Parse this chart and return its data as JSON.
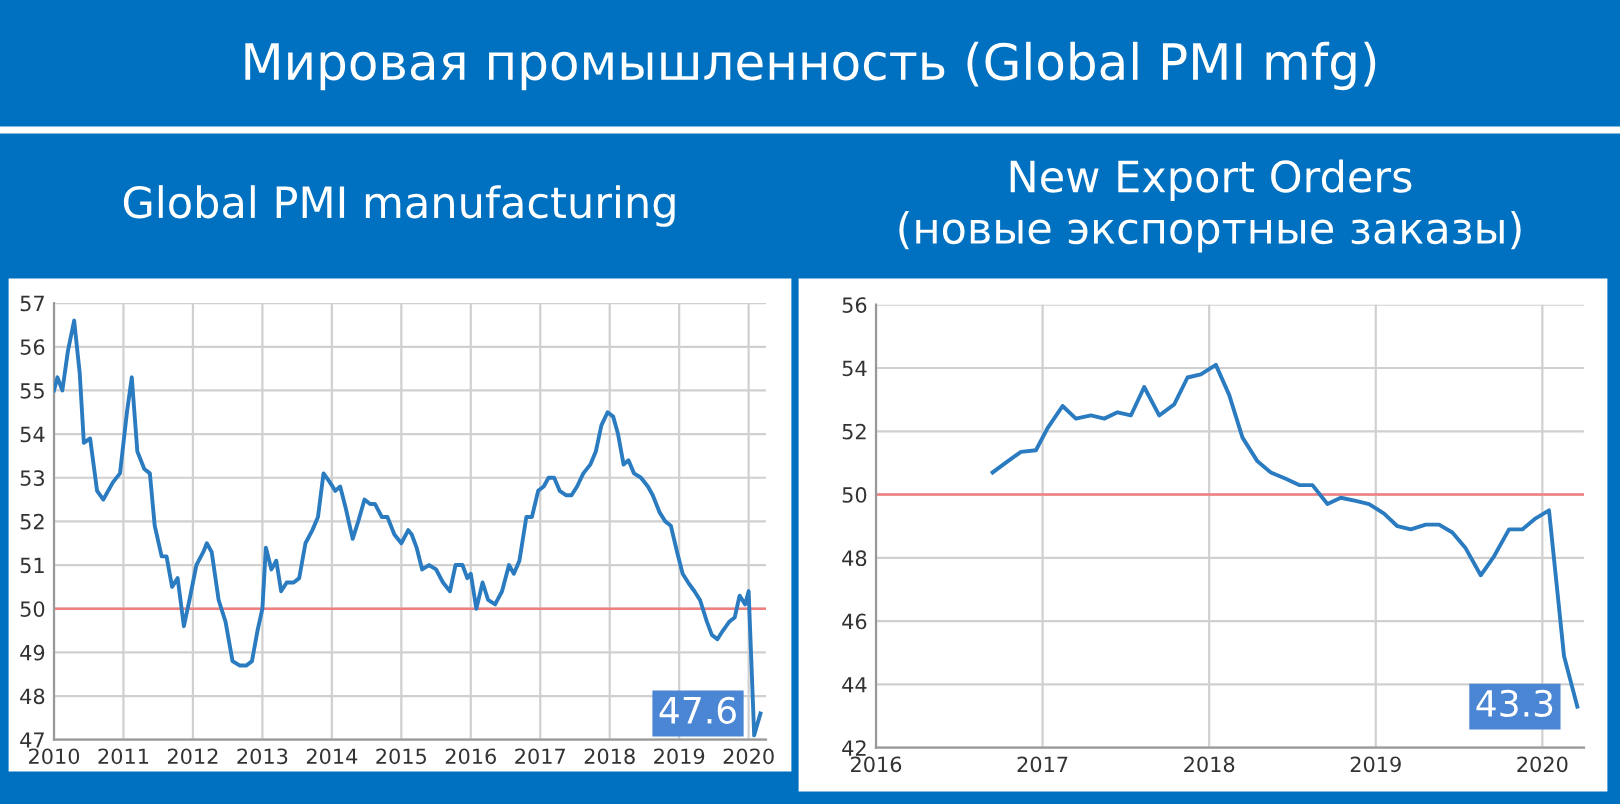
{
  "chart_data": [
    {
      "type": "line",
      "title": "Global PMI manufacturing",
      "annotations": [
        "Мировая промышленность (Global PMI mfg)",
        {
          "text": "47.6",
          "x": 2020.17,
          "y": 47.6
        }
      ],
      "x": [
        2010.0,
        2010.05,
        2010.12,
        2010.2,
        2010.29,
        2010.37,
        2010.43,
        2010.52,
        2010.62,
        2010.71,
        2010.85,
        2010.95,
        2011.05,
        2011.12,
        2011.2,
        2011.3,
        2011.38,
        2011.45,
        2011.55,
        2011.62,
        2011.7,
        2011.78,
        2011.87,
        2011.95,
        2012.05,
        2012.15,
        2012.2,
        2012.27,
        2012.37,
        2012.47,
        2012.57,
        2012.67,
        2012.77,
        2012.85,
        2012.93,
        2013.0,
        2013.05,
        2013.13,
        2013.2,
        2013.27,
        2013.35,
        2013.45,
        2013.53,
        2013.62,
        2013.72,
        2013.8,
        2013.88,
        2013.97,
        2014.05,
        2014.12,
        2014.2,
        2014.3,
        2014.38,
        2014.47,
        2014.55,
        2014.62,
        2014.72,
        2014.8,
        2014.9,
        2015.0,
        2015.1,
        2015.15,
        2015.22,
        2015.3,
        2015.4,
        2015.5,
        2015.6,
        2015.7,
        2015.78,
        2015.88,
        2015.95,
        2016.0,
        2016.08,
        2016.17,
        2016.25,
        2016.35,
        2016.45,
        2016.55,
        2016.62,
        2016.7,
        2016.8,
        2016.88,
        2016.97,
        2017.05,
        2017.12,
        2017.2,
        2017.28,
        2017.37,
        2017.45,
        2017.53,
        2017.62,
        2017.72,
        2017.8,
        2017.88,
        2017.97,
        2018.05,
        2018.12,
        2018.2,
        2018.27,
        2018.35,
        2018.45,
        2018.55,
        2018.62,
        2018.72,
        2018.8,
        2018.88,
        2018.97,
        2019.05,
        2019.13,
        2019.22,
        2019.3,
        2019.4,
        2019.47,
        2019.55,
        2019.63,
        2019.72,
        2019.8,
        2019.87,
        2019.95,
        2020.0,
        2020.08,
        2020.17
      ],
      "series": [
        {
          "color": "#2a7bc0",
          "values": [
            55.0,
            55.3,
            55.0,
            55.9,
            56.6,
            55.4,
            53.8,
            53.9,
            52.7,
            52.5,
            52.9,
            53.1,
            54.5,
            55.3,
            53.6,
            53.2,
            53.1,
            51.9,
            51.2,
            51.2,
            50.5,
            50.7,
            49.6,
            50.2,
            51.0,
            51.3,
            51.5,
            51.3,
            50.2,
            49.7,
            48.8,
            48.7,
            48.7,
            48.8,
            49.5,
            50.0,
            51.4,
            50.9,
            51.1,
            50.4,
            50.6,
            50.6,
            50.7,
            51.5,
            51.8,
            52.1,
            53.1,
            52.9,
            52.7,
            52.8,
            52.3,
            51.6,
            52.0,
            52.5,
            52.4,
            52.4,
            52.1,
            52.1,
            51.7,
            51.5,
            51.8,
            51.7,
            51.4,
            50.9,
            51.0,
            50.9,
            50.6,
            50.4,
            51.0,
            51.0,
            50.7,
            50.8,
            50.0,
            50.6,
            50.2,
            50.1,
            50.4,
            51.0,
            50.8,
            51.1,
            52.1,
            52.1,
            52.7,
            52.8,
            53.0,
            53.0,
            52.7,
            52.6,
            52.6,
            52.8,
            53.1,
            53.3,
            53.6,
            54.2,
            54.5,
            54.4,
            54.0,
            53.3,
            53.4,
            53.1,
            53.0,
            52.8,
            52.6,
            52.2,
            52.0,
            51.9,
            51.3,
            50.8,
            50.6,
            50.4,
            50.2,
            49.7,
            49.4,
            49.3,
            49.5,
            49.7,
            49.8,
            50.3,
            50.1,
            50.4,
            47.1,
            47.6
          ]
        }
      ],
      "xlim": [
        2010,
        2020.25
      ],
      "xticks": [
        2010,
        2011,
        2012,
        2013,
        2014,
        2015,
        2016,
        2017,
        2018,
        2019,
        2020
      ],
      "ylim": [
        47,
        57
      ],
      "yticks": [
        47,
        48,
        49,
        50,
        51,
        52,
        53,
        54,
        55,
        56,
        57
      ],
      "ref_lines": [
        {
          "axis": "y",
          "value": 50,
          "color": "#f08080"
        }
      ],
      "grid": true
    },
    {
      "type": "line",
      "title": "New Export Orders\n(новые экспортные заказы)",
      "annotations": [
        {
          "text": "43.3",
          "x": 2020.21,
          "y": 43.3
        }
      ],
      "x": [
        2016.7,
        2016.79,
        2016.87,
        2016.96,
        2017.03,
        2017.12,
        2017.2,
        2017.29,
        2017.37,
        2017.45,
        2017.53,
        2017.61,
        2017.7,
        2017.79,
        2017.87,
        2017.95,
        2018.04,
        2018.12,
        2018.2,
        2018.29,
        2018.37,
        2018.46,
        2018.54,
        2018.62,
        2018.71,
        2018.79,
        2018.88,
        2018.96,
        2019.05,
        2019.13,
        2019.21,
        2019.3,
        2019.38,
        2019.46,
        2019.54,
        2019.63,
        2019.71,
        2019.8,
        2019.88,
        2019.96,
        2020.04,
        2020.13,
        2020.21
      ],
      "series": [
        {
          "color": "#2a7bc0",
          "values": [
            50.7,
            51.05,
            51.35,
            51.4,
            52.1,
            52.8,
            52.4,
            52.5,
            52.4,
            52.6,
            52.5,
            53.4,
            52.5,
            52.85,
            53.7,
            53.8,
            54.1,
            53.15,
            51.8,
            51.05,
            50.7,
            50.5,
            50.3,
            50.3,
            49.7,
            49.9,
            49.8,
            49.7,
            49.4,
            49.0,
            48.9,
            49.05,
            49.05,
            48.8,
            48.3,
            47.45,
            48.05,
            48.9,
            48.9,
            49.25,
            49.5,
            44.9,
            43.3
          ]
        }
      ],
      "xlim": [
        2016,
        2020.25
      ],
      "xticks": [
        2016,
        2017,
        2018,
        2019,
        2020
      ],
      "ylim": [
        42,
        56
      ],
      "yticks": [
        42,
        44,
        46,
        48,
        50,
        52,
        54,
        56
      ],
      "ref_lines": [
        {
          "axis": "y",
          "value": 50,
          "color": "#f08080"
        }
      ],
      "grid": true
    }
  ]
}
